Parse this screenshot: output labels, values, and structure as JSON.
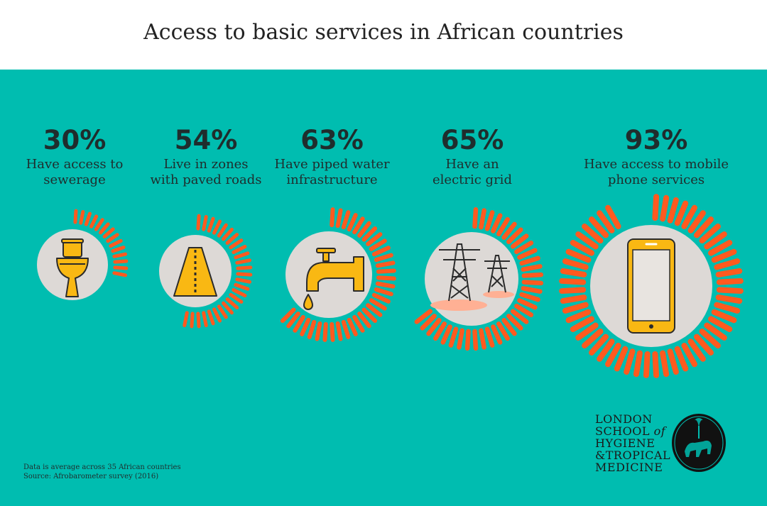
{
  "title": "Access to basic services in African countries",
  "chart_data": {
    "type": "radial-bar",
    "unit": "%",
    "items": [
      {
        "value": 30,
        "label": "30%",
        "desc": [
          "Have access to",
          "sewerage"
        ],
        "icon": "toilet-icon"
      },
      {
        "value": 54,
        "label": "54%",
        "desc": [
          "Live in zones",
          "with paved roads"
        ],
        "icon": "road-icon"
      },
      {
        "value": 63,
        "label": "63%",
        "desc": [
          "Have piped water",
          "infrastructure"
        ],
        "icon": "faucet-icon"
      },
      {
        "value": 65,
        "label": "65%",
        "desc": [
          "Have an",
          "electric grid"
        ],
        "icon": "power-pylon-icon"
      },
      {
        "value": 93,
        "label": "93%",
        "desc": [
          "Have access to mobile",
          "phone services"
        ],
        "icon": "mobile-phone-icon"
      }
    ]
  },
  "notes": {
    "line1": "Data is average across 35 African countries",
    "line2": "Source: Afrobarometer survey (2016)"
  },
  "logo": {
    "line1": "LONDON",
    "line2a": "SCHOOL ",
    "line2b": "of",
    "line3": "HYGIENE",
    "line4": "&TROPICAL",
    "line5": "MEDICINE"
  },
  "colors": {
    "background": "#00bdb0",
    "ticks": "#ff5a1f",
    "circle": "#ddd9d6",
    "icon_fill": "#f9b813",
    "text": "#1f2d2d"
  }
}
